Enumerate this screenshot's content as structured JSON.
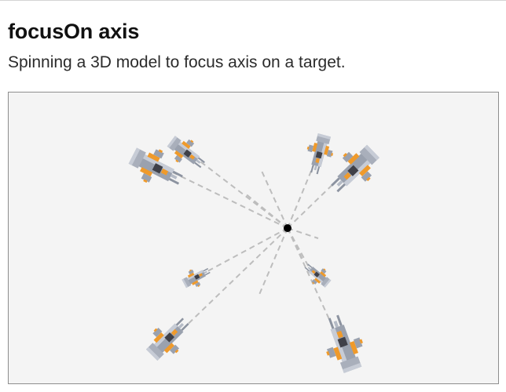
{
  "header": {
    "title": "focusOn axis",
    "subtitle": "Spinning a 3D model to focus axis on a target."
  },
  "scene": {
    "background": "#f4f4f4",
    "target_color": "#000000",
    "guide_line_color": "#bdbdbd",
    "model_colors": {
      "hull_gray": "#9aa1ae",
      "hull_light": "#c7ccd6",
      "hull_dark": "#3f4048",
      "accent_orange": "#ef9a2b"
    },
    "models": [
      {
        "name": "spaceship-top-left-large"
      },
      {
        "name": "spaceship-top-left-small"
      },
      {
        "name": "spaceship-top-right-small"
      },
      {
        "name": "spaceship-top-right-large"
      },
      {
        "name": "spaceship-middle-left"
      },
      {
        "name": "spaceship-middle-right"
      },
      {
        "name": "spaceship-bottom-left"
      },
      {
        "name": "spaceship-bottom-right"
      }
    ]
  }
}
